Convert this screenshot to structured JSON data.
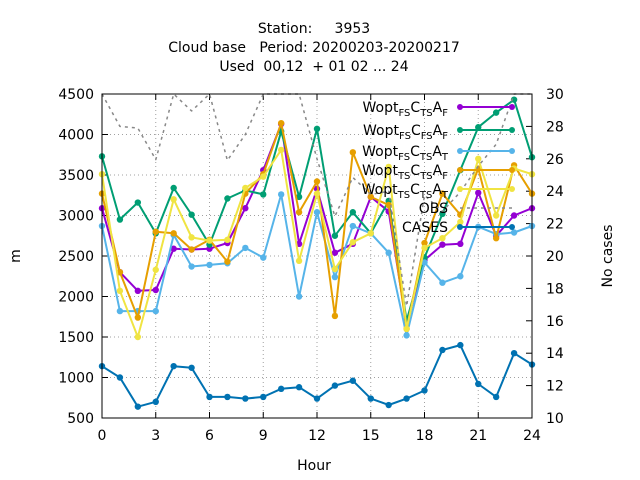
{
  "chart_data": {
    "type": "line",
    "title_lines": [
      "Station:     3953",
      "Cloud base   Period: 20200203-20200217",
      "Used  00,12  + 01 02 ... 24"
    ],
    "xlabel": "Hour",
    "ylabel": "m",
    "y2label": "No cases",
    "xlim": [
      0,
      24
    ],
    "ylim": [
      500,
      4500
    ],
    "y2lim": [
      10,
      30
    ],
    "xticks": [
      "0",
      "3",
      "6",
      "9",
      "12",
      "15",
      "18",
      "21",
      "24"
    ],
    "yticks": [
      "500",
      "1000",
      "1500",
      "2000",
      "2500",
      "3000",
      "3500",
      "4000",
      "4500"
    ],
    "y2ticks": [
      "10",
      "12",
      "14",
      "16",
      "18",
      "20",
      "22",
      "24",
      "26",
      "28",
      "30"
    ],
    "grid": true,
    "legend_position": "top-right",
    "legend": [
      {
        "base": "Wopt",
        "s1": "FS",
        "c": "C",
        "s2": "TS",
        "a": "A",
        "s3": "F"
      },
      {
        "base": "Wopt",
        "s1": "FS",
        "c": "C",
        "s2": "FS",
        "a": "A",
        "s3": "F"
      },
      {
        "base": "Wopt",
        "s1": "FS",
        "c": "C",
        "s2": "TS",
        "a": "A",
        "s3": "T"
      },
      {
        "base": "Wopt",
        "s1": "TS",
        "c": "C",
        "s2": "TS",
        "a": "A",
        "s3": "F"
      },
      {
        "base": "Wopt",
        "s1": "TS",
        "c": "C",
        "s2": "TS",
        "a": "A",
        "s3": "T"
      },
      {
        "text": "OBS"
      },
      {
        "text": "CASES"
      }
    ],
    "x": [
      0,
      1,
      2,
      3,
      4,
      5,
      6,
      7,
      8,
      9,
      10,
      11,
      12,
      13,
      14,
      15,
      16,
      17,
      18,
      19,
      20,
      21,
      22,
      23,
      24
    ],
    "series": [
      {
        "color": "#9400d3",
        "marker": "circle",
        "axis": "y1",
        "values": [
          3090,
          2300,
          2070,
          2080,
          2590,
          2580,
          2590,
          2660,
          3090,
          3560,
          4130,
          2650,
          3330,
          2540,
          2650,
          3230,
          3050,
          1650,
          2450,
          2640,
          2650,
          3280,
          2750,
          3000,
          3090
        ]
      },
      {
        "color": "#009e73",
        "marker": "circle",
        "axis": "y1",
        "values": [
          3730,
          2950,
          3160,
          2780,
          3340,
          3010,
          2640,
          3210,
          3310,
          3260,
          4040,
          3230,
          4070,
          2750,
          3040,
          2780,
          3180,
          1700,
          2480,
          3020,
          3560,
          4090,
          4270,
          4430,
          3720
        ]
      },
      {
        "color": "#56b4e9",
        "marker": "circle",
        "axis": "y1",
        "values": [
          2870,
          1820,
          1820,
          1820,
          2760,
          2370,
          2390,
          2410,
          2600,
          2480,
          3260,
          2000,
          3040,
          2240,
          2870,
          2780,
          2540,
          1520,
          2420,
          2170,
          2250,
          2860,
          2770,
          2790,
          2870
        ]
      },
      {
        "color": "#e69f00",
        "marker": "circle",
        "axis": "y1",
        "values": [
          3270,
          2300,
          1740,
          2800,
          2780,
          2580,
          2700,
          2430,
          3270,
          3510,
          4140,
          3040,
          3420,
          1760,
          3780,
          3230,
          3130,
          1600,
          2660,
          3270,
          3010,
          3580,
          2720,
          3620,
          3270
        ]
      },
      {
        "color": "#f0e442",
        "marker": "circle",
        "axis": "y1",
        "values": [
          3510,
          2070,
          1500,
          2330,
          3200,
          2730,
          2690,
          2700,
          3340,
          3480,
          3810,
          2440,
          3270,
          2340,
          2670,
          2780,
          3600,
          1600,
          2600,
          2720,
          2920,
          3700,
          3000,
          3580,
          3510
        ]
      },
      {
        "color": "#888888",
        "marker": "none",
        "dashed": true,
        "axis": "y1",
        "values": [
          4500,
          4100,
          4080,
          3690,
          4500,
          4290,
          4500,
          3680,
          4000,
          4500,
          4500,
          4500,
          3700,
          2990,
          3470,
          3260,
          3300,
          1880,
          3250,
          3050,
          3290,
          3610,
          3880,
          4500,
          4500
        ]
      },
      {
        "color": "#0072b2",
        "marker": "circle",
        "axis": "y2",
        "values": [
          13.2,
          12.5,
          10.7,
          11.0,
          13.2,
          13.1,
          11.3,
          11.3,
          11.2,
          11.3,
          11.8,
          11.9,
          11.2,
          12.0,
          12.3,
          11.2,
          10.8,
          11.2,
          11.7,
          14.2,
          14.5,
          12.1,
          11.3,
          14.0,
          13.3
        ]
      }
    ]
  }
}
